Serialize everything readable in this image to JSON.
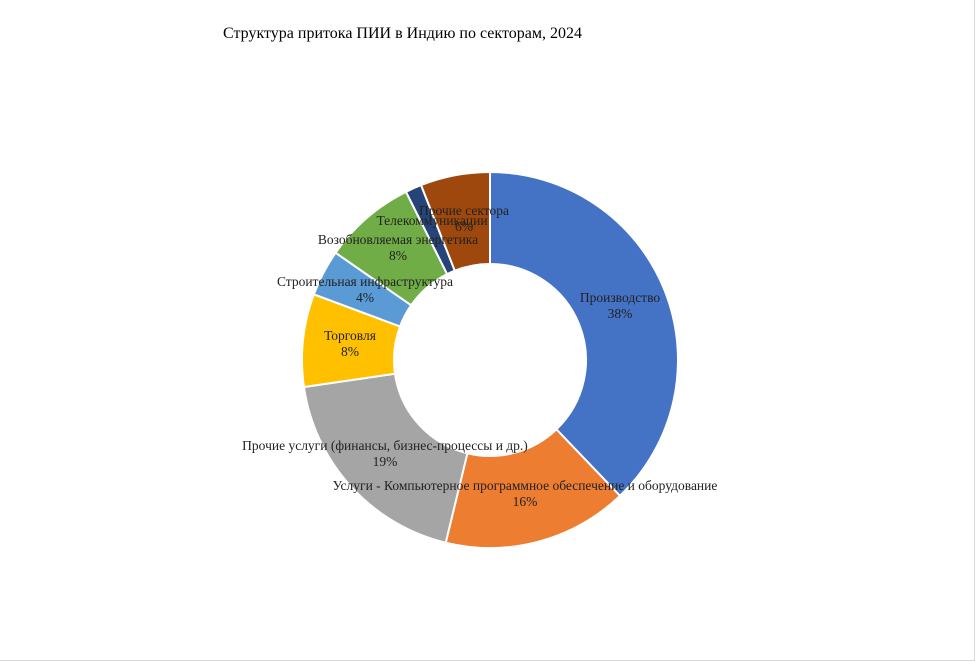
{
  "chart_data": {
    "type": "pie",
    "variant": "donut",
    "title": "Структура притока ПИИ в Индию по секторам, 2024",
    "slices": [
      {
        "label": "Производство",
        "value": 38,
        "value_label": "38%",
        "color": "#4472C4"
      },
      {
        "label": "Услуги - Компьютерное программное обеспечение и оборудование",
        "value": 16,
        "value_label": "16%",
        "color": "#ED7D31"
      },
      {
        "label": "Прочие услуги (финансы, бизнес-процессы и др.)",
        "value": 19,
        "value_label": "19%",
        "color": "#A5A5A5"
      },
      {
        "label": "Торговля",
        "value": 8,
        "value_label": "8%",
        "color": "#FFC000"
      },
      {
        "label": "Строительная инфраструктура",
        "value": 4,
        "value_label": "4%",
        "color": "#5B9BD5"
      },
      {
        "label": "Возобновляемая энергетика",
        "value": 8,
        "value_label": "8%",
        "color": "#70AD47"
      },
      {
        "label": "Телекоммуникации",
        "value": 1.4,
        "value_label": "",
        "color": "#264478"
      },
      {
        "label": "Прочие сектора",
        "value": 6,
        "value_label": "6%",
        "color": "#9E480E"
      }
    ],
    "legend": "none"
  }
}
